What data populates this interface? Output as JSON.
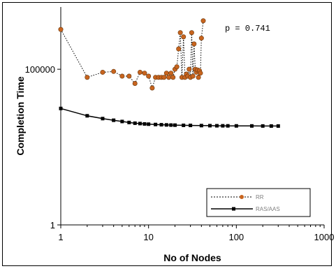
{
  "chart_data": {
    "type": "line",
    "xlabel": "No of Nodes",
    "ylabel": "Completion Time",
    "x_scale": "log",
    "y_scale": "log",
    "xlim": [
      1,
      1000
    ],
    "ylim": [
      1,
      10000000
    ],
    "x_ticks": [
      "1",
      "10",
      "100",
      "1000"
    ],
    "y_ticks": [
      "1",
      "100000"
    ],
    "grid": false,
    "legend_position": "bottom-right",
    "annotation": "p = 0.741",
    "series": [
      {
        "name": "RR",
        "color": "#c8641e",
        "line_style": "dotted",
        "marker": "circle",
        "x": [
          1,
          2,
          3,
          4,
          5,
          6,
          7,
          8,
          9,
          10,
          11,
          12,
          13,
          14,
          15,
          16,
          17,
          18,
          19,
          20,
          21,
          22,
          23,
          24,
          25,
          26,
          27,
          28,
          29,
          30,
          31,
          32,
          33,
          34,
          35,
          36,
          37,
          38,
          39,
          40,
          42
        ],
        "y": [
          1900000,
          55000,
          80000,
          85000,
          60000,
          60000,
          35000,
          80000,
          75000,
          60000,
          25000,
          55000,
          55000,
          55000,
          55000,
          75000,
          55000,
          75000,
          55000,
          100000,
          120000,
          450000,
          1500000,
          55000,
          1100000,
          55000,
          70000,
          60000,
          100000,
          55000,
          1500000,
          60000,
          650000,
          100000,
          80000,
          95000,
          55000,
          90000,
          75000,
          1000000,
          3600000
        ]
      },
      {
        "name": "RAS/AAS",
        "color": "#000000",
        "line_style": "solid",
        "marker": "square",
        "x": [
          1,
          2,
          3,
          4,
          5,
          6,
          7,
          8,
          9,
          10,
          12,
          14,
          16,
          18,
          20,
          25,
          30,
          40,
          50,
          60,
          70,
          80,
          100,
          150,
          200,
          250,
          300
        ],
        "y": [
          5500,
          3200,
          2600,
          2300,
          2100,
          1950,
          1850,
          1800,
          1750,
          1720,
          1680,
          1650,
          1630,
          1610,
          1600,
          1580,
          1570,
          1550,
          1540,
          1530,
          1525,
          1520,
          1515,
          1510,
          1505,
          1500,
          1500
        ]
      }
    ]
  }
}
